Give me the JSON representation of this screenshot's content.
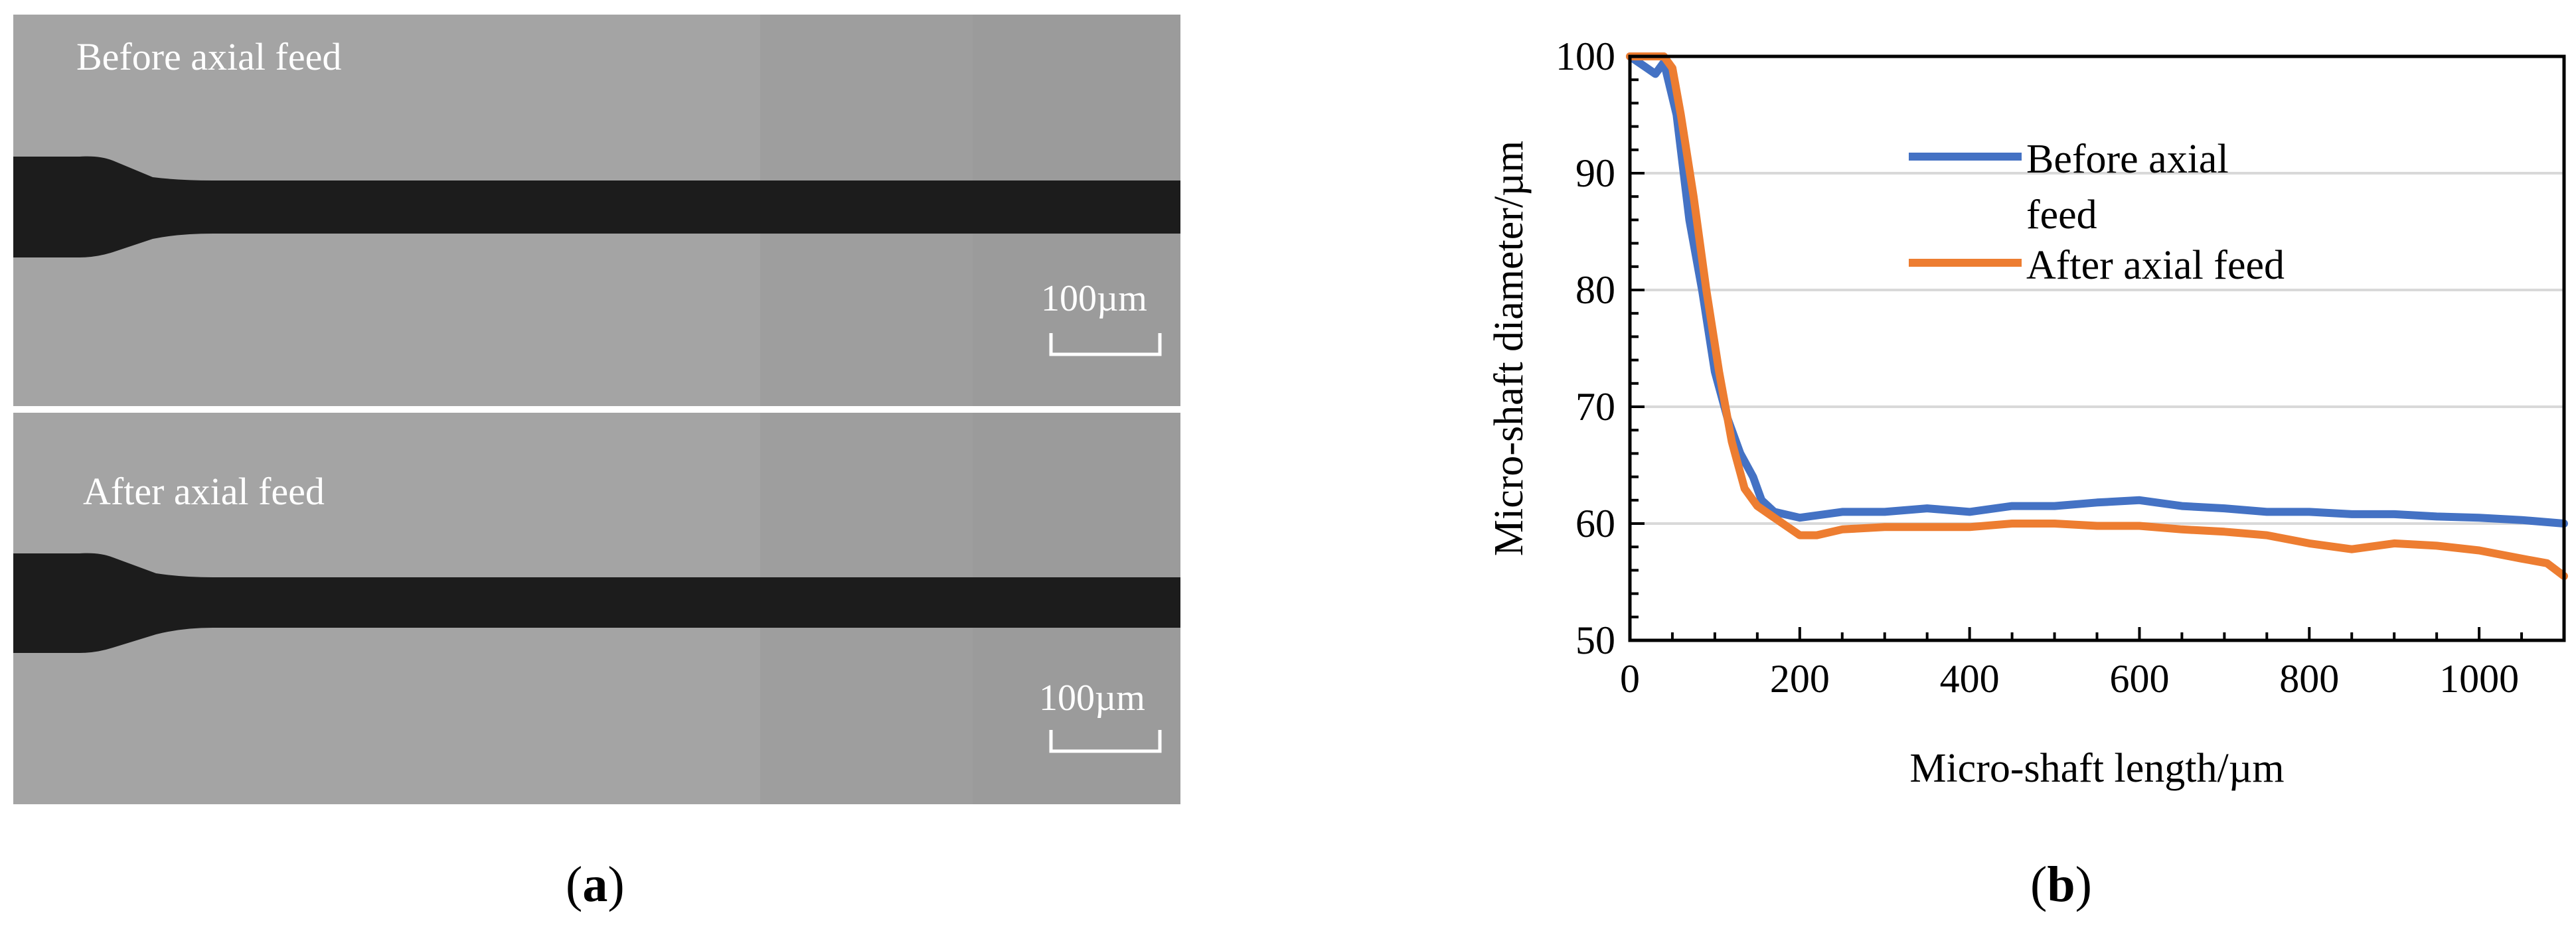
{
  "panel_a": {
    "top_image_label": "Before axial feed",
    "bottom_image_label": "After axial feed",
    "scale_bar_label": "100µm",
    "caption_letter": "a"
  },
  "panel_b": {
    "caption_letter": "b"
  },
  "colors": {
    "before": "#4472C4",
    "after": "#ED7D31",
    "gridline": "#D9D9D9",
    "background_gray": "#A3A3A3",
    "shaft_dark": "#1C1C1C"
  },
  "chart_data": {
    "type": "line",
    "xlabel": "Micro-shaft length/µm",
    "ylabel": "Micro-shaft diameter/µm",
    "xlim": [
      0,
      1100
    ],
    "ylim": [
      50,
      100
    ],
    "xticks": [
      0,
      200,
      400,
      600,
      800,
      1000
    ],
    "yticks": [
      50,
      60,
      70,
      80,
      90,
      100
    ],
    "grid": "horizontal",
    "legend_position": "top-right",
    "series": [
      {
        "name": "Before axial feed",
        "legend_lines": [
          "Before axial",
          "feed"
        ],
        "color": "#4472C4",
        "x": [
          0,
          20,
          30,
          40,
          55,
          70,
          85,
          100,
          115,
          130,
          145,
          155,
          170,
          200,
          250,
          300,
          350,
          400,
          450,
          500,
          550,
          600,
          650,
          700,
          750,
          800,
          850,
          900,
          950,
          1000,
          1050,
          1100
        ],
        "y": [
          100,
          99,
          98.5,
          99.5,
          95,
          86,
          80,
          73,
          69,
          66,
          64,
          62,
          61,
          60.5,
          61,
          61,
          61.3,
          61,
          61.5,
          61.5,
          61.8,
          62,
          61.5,
          61.3,
          61,
          61,
          60.8,
          60.8,
          60.6,
          60.5,
          60.3,
          60
        ]
      },
      {
        "name": "After axial feed",
        "legend_lines": [
          "After axial feed"
        ],
        "color": "#ED7D31",
        "x": [
          0,
          20,
          40,
          50,
          60,
          75,
          90,
          105,
          120,
          135,
          150,
          170,
          200,
          220,
          250,
          300,
          350,
          400,
          450,
          500,
          550,
          600,
          650,
          700,
          750,
          800,
          850,
          900,
          950,
          1000,
          1050,
          1080,
          1100
        ],
        "y": [
          100,
          100,
          100,
          99,
          95,
          88,
          80,
          73,
          67,
          63,
          61.5,
          60.5,
          59,
          59,
          59.5,
          59.7,
          59.7,
          59.7,
          60,
          60,
          59.8,
          59.8,
          59.5,
          59.3,
          59,
          58.3,
          57.8,
          58.3,
          58.1,
          57.7,
          57,
          56.6,
          55.5
        ]
      }
    ]
  }
}
